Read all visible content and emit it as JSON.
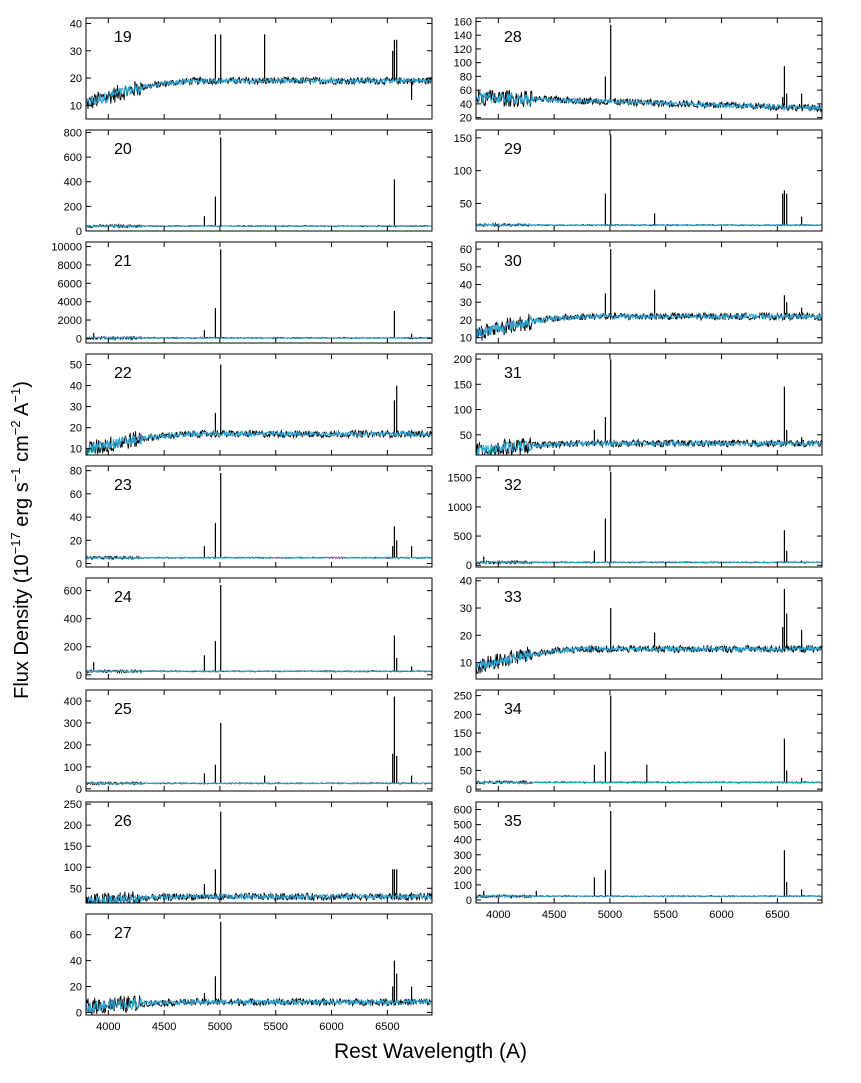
{
  "figure": {
    "ylabel_main": "Flux Density (10",
    "ylabel_exp1": "−17",
    "ylabel_mid1": " erg s",
    "ylabel_exp2": "−1",
    "ylabel_mid2": " cm",
    "ylabel_exp3": "−2",
    "ylabel_mid3": " A",
    "ylabel_exp4": "−1",
    "ylabel_end": ")",
    "xlabel": "Rest Wavelength (A)",
    "colors": {
      "observed": "#000000",
      "model": "#2aa7d8"
    }
  },
  "chart_data": [
    {
      "type": "line",
      "id": "19",
      "label": "19",
      "xlim": [
        3800,
        6900
      ],
      "ylim": [
        5,
        42
      ],
      "yticks": [
        10,
        20,
        30,
        40
      ],
      "continuum": "rise",
      "base": 19,
      "peaks": [
        [
          4959,
          36
        ],
        [
          5007,
          36
        ],
        [
          5400,
          36
        ],
        [
          6548,
          30
        ],
        [
          6563,
          34
        ],
        [
          6584,
          34
        ],
        [
          6717,
          12
        ]
      ],
      "xticks": [],
      "series": [
        "observed",
        "model"
      ]
    },
    {
      "type": "line",
      "id": "20",
      "label": "20",
      "xlim": [
        3800,
        6900
      ],
      "ylim": [
        0,
        820
      ],
      "yticks": [
        0,
        200,
        400,
        600,
        800
      ],
      "continuum": "flat",
      "base": 40,
      "peaks": [
        [
          4861,
          120
        ],
        [
          4959,
          280
        ],
        [
          5007,
          760
        ],
        [
          6563,
          420
        ]
      ],
      "xticks": [],
      "series": [
        "observed",
        "model"
      ]
    },
    {
      "type": "line",
      "id": "21",
      "label": "21",
      "xlim": [
        3800,
        6900
      ],
      "ylim": [
        -500,
        10500
      ],
      "yticks": [
        0,
        2000,
        4000,
        6000,
        8000,
        10000
      ],
      "continuum": "flat",
      "base": 50,
      "peaks": [
        [
          3869,
          600
        ],
        [
          4861,
          900
        ],
        [
          4959,
          3300
        ],
        [
          5007,
          9700
        ],
        [
          6563,
          3000
        ],
        [
          6717,
          500
        ]
      ],
      "xticks": [],
      "series": [
        "observed",
        "model"
      ]
    },
    {
      "type": "line",
      "id": "22",
      "label": "22",
      "xlim": [
        3800,
        6900
      ],
      "ylim": [
        7,
        55
      ],
      "yticks": [
        10,
        20,
        30,
        40,
        50
      ],
      "continuum": "rise",
      "base": 17,
      "peaks": [
        [
          4959,
          27
        ],
        [
          5007,
          50
        ],
        [
          6563,
          33
        ],
        [
          6584,
          40
        ]
      ],
      "xticks": [],
      "series": [
        "observed",
        "model"
      ]
    },
    {
      "type": "line",
      "id": "23",
      "label": "23",
      "xlim": [
        3800,
        6900
      ],
      "ylim": [
        -3,
        84
      ],
      "yticks": [
        0,
        20,
        40,
        60,
        80
      ],
      "continuum": "flat",
      "base": 5,
      "peaks": [
        [
          4861,
          15
        ],
        [
          4959,
          35
        ],
        [
          5007,
          78
        ],
        [
          6548,
          15
        ],
        [
          6563,
          32
        ],
        [
          6584,
          20
        ],
        [
          6717,
          15
        ]
      ],
      "xticks": [],
      "series": [
        "observed",
        "model"
      ]
    },
    {
      "type": "line",
      "id": "24",
      "label": "24",
      "xlim": [
        3800,
        6900
      ],
      "ylim": [
        -30,
        690
      ],
      "yticks": [
        0,
        200,
        400,
        600
      ],
      "continuum": "flat",
      "base": 25,
      "peaks": [
        [
          3869,
          90
        ],
        [
          4861,
          140
        ],
        [
          4959,
          240
        ],
        [
          5007,
          640
        ],
        [
          6563,
          280
        ],
        [
          6584,
          120
        ],
        [
          6717,
          60
        ]
      ],
      "xticks": [],
      "series": [
        "observed",
        "model"
      ]
    },
    {
      "type": "line",
      "id": "25",
      "label": "25",
      "xlim": [
        3800,
        6900
      ],
      "ylim": [
        -10,
        450
      ],
      "yticks": [
        0,
        100,
        200,
        300,
        400
      ],
      "continuum": "flat",
      "base": 25,
      "peaks": [
        [
          4861,
          70
        ],
        [
          4959,
          110
        ],
        [
          5007,
          300
        ],
        [
          5400,
          60
        ],
        [
          6548,
          160
        ],
        [
          6563,
          420
        ],
        [
          6584,
          150
        ],
        [
          6717,
          60
        ]
      ],
      "xticks": [],
      "series": [
        "observed",
        "model"
      ]
    },
    {
      "type": "line",
      "id": "26",
      "label": "26",
      "xlim": [
        3800,
        6900
      ],
      "ylim": [
        15,
        255
      ],
      "yticks": [
        50,
        100,
        150,
        200,
        250
      ],
      "continuum": "rise",
      "base": 30,
      "peaks": [
        [
          4861,
          60
        ],
        [
          4959,
          95
        ],
        [
          5007,
          232
        ],
        [
          6548,
          95
        ],
        [
          6563,
          95
        ],
        [
          6584,
          95
        ],
        [
          6717,
          40
        ]
      ],
      "xticks": [],
      "series": [
        "observed",
        "model"
      ]
    },
    {
      "type": "line",
      "id": "27",
      "label": "27",
      "xlim": [
        3800,
        6900
      ],
      "ylim": [
        -2,
        76
      ],
      "yticks": [
        0,
        20,
        40,
        60
      ],
      "continuum": "rise",
      "base": 8,
      "peaks": [
        [
          4861,
          15
        ],
        [
          4959,
          28
        ],
        [
          5007,
          70
        ],
        [
          6548,
          20
        ],
        [
          6563,
          40
        ],
        [
          6584,
          30
        ],
        [
          6717,
          20
        ]
      ],
      "xticks": [
        4000,
        4500,
        5000,
        5500,
        6000,
        6500
      ],
      "series": [
        "observed",
        "model"
      ]
    },
    {
      "type": "line",
      "id": "28",
      "label": "28",
      "xlim": [
        3800,
        6900
      ],
      "ylim": [
        18,
        165
      ],
      "yticks": [
        20,
        40,
        60,
        80,
        100,
        120,
        140,
        160
      ],
      "continuum": "fall",
      "base": 45,
      "peaks": [
        [
          4959,
          80
        ],
        [
          5007,
          155
        ],
        [
          6548,
          50
        ],
        [
          6563,
          95
        ],
        [
          6584,
          55
        ],
        [
          6717,
          55
        ]
      ],
      "xticks": [],
      "series": [
        "observed",
        "model"
      ]
    },
    {
      "type": "line",
      "id": "29",
      "label": "29",
      "xlim": [
        3800,
        6900
      ],
      "ylim": [
        8,
        162
      ],
      "yticks": [
        50,
        100,
        150
      ],
      "continuum": "flat",
      "base": 17,
      "peaks": [
        [
          4959,
          65
        ],
        [
          5007,
          155
        ],
        [
          5400,
          35
        ],
        [
          6548,
          65
        ],
        [
          6563,
          70
        ],
        [
          6584,
          65
        ],
        [
          6717,
          30
        ]
      ],
      "xticks": [],
      "series": [
        "observed",
        "model"
      ]
    },
    {
      "type": "line",
      "id": "30",
      "label": "30",
      "xlim": [
        3800,
        6900
      ],
      "ylim": [
        7,
        64
      ],
      "yticks": [
        10,
        20,
        30,
        40,
        50,
        60
      ],
      "continuum": "rise",
      "base": 22,
      "peaks": [
        [
          4959,
          35
        ],
        [
          5007,
          60
        ],
        [
          5400,
          37
        ],
        [
          6563,
          34
        ],
        [
          6584,
          30
        ],
        [
          6717,
          27
        ]
      ],
      "xticks": [],
      "series": [
        "observed",
        "model"
      ]
    },
    {
      "type": "line",
      "id": "31",
      "label": "31",
      "xlim": [
        3800,
        6900
      ],
      "ylim": [
        10,
        210
      ],
      "yticks": [
        50,
        100,
        150,
        200
      ],
      "continuum": "rise",
      "base": 33,
      "peaks": [
        [
          4861,
          60
        ],
        [
          4959,
          85
        ],
        [
          5007,
          200
        ],
        [
          6563,
          145
        ],
        [
          6584,
          60
        ],
        [
          6717,
          45
        ]
      ],
      "xticks": [],
      "series": [
        "observed",
        "model"
      ]
    },
    {
      "type": "line",
      "id": "32",
      "label": "32",
      "xlim": [
        3800,
        6900
      ],
      "ylim": [
        -30,
        1700
      ],
      "yticks": [
        0,
        500,
        1000,
        1500
      ],
      "continuum": "flat",
      "base": 50,
      "peaks": [
        [
          3869,
          150
        ],
        [
          4861,
          250
        ],
        [
          4959,
          800
        ],
        [
          5007,
          1600
        ],
        [
          6563,
          600
        ],
        [
          6584,
          250
        ],
        [
          6717,
          80
        ]
      ],
      "xticks": [],
      "series": [
        "observed",
        "model"
      ]
    },
    {
      "type": "line",
      "id": "33",
      "label": "33",
      "xlim": [
        3800,
        6900
      ],
      "ylim": [
        4,
        41
      ],
      "yticks": [
        10,
        20,
        30,
        40
      ],
      "continuum": "rise",
      "base": 15,
      "peaks": [
        [
          5007,
          30
        ],
        [
          5400,
          21
        ],
        [
          6548,
          23
        ],
        [
          6563,
          37
        ],
        [
          6584,
          28
        ],
        [
          6717,
          22
        ]
      ],
      "xticks": [],
      "series": [
        "observed",
        "model"
      ]
    },
    {
      "type": "line",
      "id": "34",
      "label": "34",
      "xlim": [
        3800,
        6900
      ],
      "ylim": [
        -5,
        265
      ],
      "yticks": [
        0,
        50,
        100,
        150,
        200,
        250
      ],
      "continuum": "flat",
      "base": 18,
      "peaks": [
        [
          4861,
          65
        ],
        [
          4959,
          100
        ],
        [
          5007,
          250
        ],
        [
          5330,
          65
        ],
        [
          6563,
          135
        ],
        [
          6584,
          50
        ],
        [
          6717,
          30
        ]
      ],
      "xticks": [],
      "series": [
        "observed",
        "model"
      ]
    },
    {
      "type": "line",
      "id": "35",
      "label": "35",
      "xlim": [
        3800,
        6900
      ],
      "ylim": [
        -20,
        650
      ],
      "yticks": [
        0,
        100,
        200,
        300,
        400,
        500,
        600
      ],
      "continuum": "flat",
      "base": 25,
      "peaks": [
        [
          3869,
          60
        ],
        [
          4340,
          60
        ],
        [
          4861,
          150
        ],
        [
          4959,
          200
        ],
        [
          5007,
          590
        ],
        [
          6563,
          330
        ],
        [
          6584,
          120
        ],
        [
          6717,
          70
        ]
      ],
      "xticks": [
        4000,
        4500,
        5000,
        5500,
        6000,
        6500
      ],
      "series": [
        "observed",
        "model"
      ]
    }
  ]
}
